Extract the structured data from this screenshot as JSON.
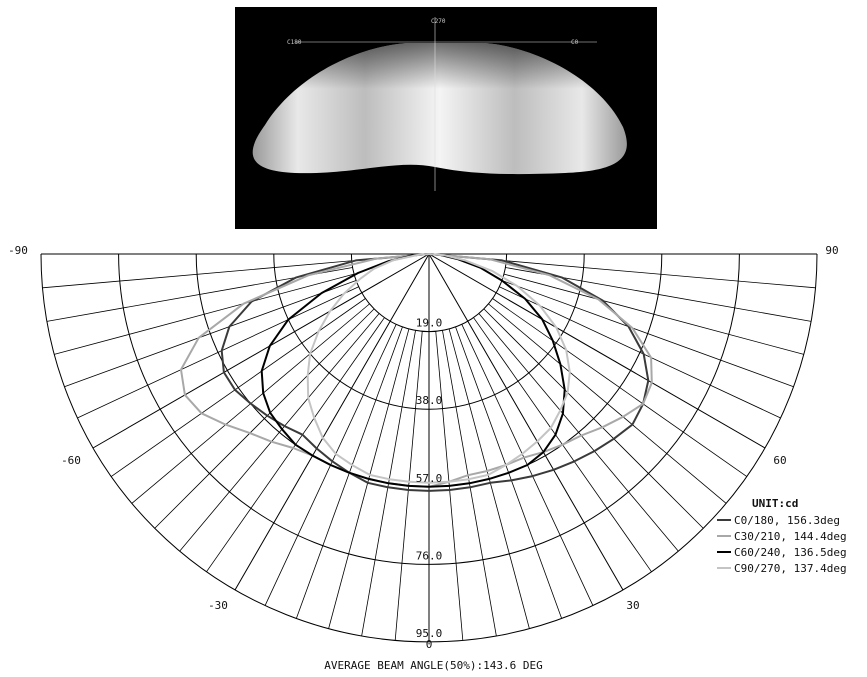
{
  "render_labels": {
    "top": "C270",
    "left": "C180",
    "right": "C0"
  },
  "chart_data": {
    "type": "polar",
    "unit_label": "UNIT:cd",
    "radial_ticks": [
      "19.0",
      "38.0",
      "57.0",
      "76.0",
      "95.0"
    ],
    "radial_max": 95,
    "center_label": "0",
    "angle_labels_left": [
      "-90",
      "-60",
      "-30"
    ],
    "angle_labels_right": [
      "90",
      "60",
      "30"
    ],
    "grid_step_deg": 5,
    "series": [
      {
        "name": "C0/180, 156.3deg",
        "color": "#3a3a3a",
        "points": [
          [
            -90,
            0
          ],
          [
            -85,
            18
          ],
          [
            -80,
            33
          ],
          [
            -75,
            45
          ],
          [
            -70,
            52
          ],
          [
            -65,
            56
          ],
          [
            -60,
            58
          ],
          [
            -55,
            58
          ],
          [
            -50,
            57
          ],
          [
            -45,
            56
          ],
          [
            -40,
            55
          ],
          [
            -35,
            54
          ],
          [
            -30,
            55
          ],
          [
            -25,
            56
          ],
          [
            -20,
            57
          ],
          [
            -15,
            58
          ],
          [
            -10,
            58
          ],
          [
            -5,
            58
          ],
          [
            0,
            58
          ],
          [
            5,
            58
          ],
          [
            10,
            58
          ],
          [
            15,
            58
          ],
          [
            20,
            59
          ],
          [
            25,
            60
          ],
          [
            30,
            61
          ],
          [
            35,
            62
          ],
          [
            40,
            63
          ],
          [
            45,
            64
          ],
          [
            50,
            65
          ],
          [
            55,
            64
          ],
          [
            60,
            62
          ],
          [
            65,
            58
          ],
          [
            70,
            52
          ],
          [
            75,
            44
          ],
          [
            80,
            33
          ],
          [
            85,
            18
          ],
          [
            90,
            0
          ]
        ]
      },
      {
        "name": "C30/210, 144.4deg",
        "color": "#a8a8a8",
        "points": [
          [
            -90,
            0
          ],
          [
            -85,
            13
          ],
          [
            -80,
            30
          ],
          [
            -75,
            47
          ],
          [
            -70,
            60
          ],
          [
            -65,
            67
          ],
          [
            -60,
            69
          ],
          [
            -55,
            68
          ],
          [
            -50,
            65
          ],
          [
            -45,
            62
          ],
          [
            -40,
            60
          ],
          [
            -35,
            58
          ],
          [
            -30,
            57
          ],
          [
            -25,
            57
          ],
          [
            -20,
            57
          ],
          [
            -15,
            57
          ],
          [
            -10,
            57
          ],
          [
            -5,
            57
          ],
          [
            0,
            57
          ],
          [
            5,
            56
          ],
          [
            10,
            55
          ],
          [
            15,
            55
          ],
          [
            20,
            55
          ],
          [
            25,
            55
          ],
          [
            30,
            56
          ],
          [
            35,
            57
          ],
          [
            40,
            58
          ],
          [
            45,
            60
          ],
          [
            50,
            62
          ],
          [
            55,
            64
          ],
          [
            60,
            63
          ],
          [
            65,
            60
          ],
          [
            70,
            53
          ],
          [
            75,
            43
          ],
          [
            80,
            30
          ],
          [
            85,
            15
          ],
          [
            90,
            0
          ]
        ]
      },
      {
        "name": "C60/240, 136.5deg",
        "color": "#000000",
        "points": [
          [
            -90,
            0
          ],
          [
            -85,
            4
          ],
          [
            -80,
            10
          ],
          [
            -75,
            18
          ],
          [
            -70,
            28
          ],
          [
            -65,
            38
          ],
          [
            -60,
            45
          ],
          [
            -55,
            50
          ],
          [
            -50,
            53
          ],
          [
            -45,
            55
          ],
          [
            -40,
            56
          ],
          [
            -35,
            57
          ],
          [
            -30,
            57
          ],
          [
            -25,
            57
          ],
          [
            -20,
            57
          ],
          [
            -15,
            57
          ],
          [
            -10,
            57
          ],
          [
            -5,
            57
          ],
          [
            0,
            57
          ],
          [
            5,
            57
          ],
          [
            10,
            57
          ],
          [
            15,
            57
          ],
          [
            20,
            57
          ],
          [
            25,
            57
          ],
          [
            30,
            56
          ],
          [
            35,
            54
          ],
          [
            40,
            51
          ],
          [
            45,
            47
          ],
          [
            50,
            42
          ],
          [
            55,
            37
          ],
          [
            60,
            32
          ],
          [
            65,
            26
          ],
          [
            70,
            19
          ],
          [
            75,
            13
          ],
          [
            80,
            7
          ],
          [
            85,
            3
          ],
          [
            90,
            0
          ]
        ]
      },
      {
        "name": "C90/270, 137.4deg",
        "color": "#c4c4c4",
        "points": [
          [
            -90,
            0
          ],
          [
            -85,
            3
          ],
          [
            -80,
            9
          ],
          [
            -75,
            14
          ],
          [
            -70,
            18
          ],
          [
            -65,
            23
          ],
          [
            -60,
            28
          ],
          [
            -55,
            33
          ],
          [
            -50,
            38
          ],
          [
            -45,
            42
          ],
          [
            -40,
            46
          ],
          [
            -35,
            49
          ],
          [
            -30,
            52
          ],
          [
            -25,
            54
          ],
          [
            -20,
            55
          ],
          [
            -15,
            56
          ],
          [
            -10,
            56
          ],
          [
            -5,
            56
          ],
          [
            0,
            56
          ],
          [
            5,
            56
          ],
          [
            10,
            56
          ],
          [
            15,
            56
          ],
          [
            20,
            55
          ],
          [
            25,
            54
          ],
          [
            30,
            53
          ],
          [
            35,
            52
          ],
          [
            40,
            50
          ],
          [
            45,
            48
          ],
          [
            50,
            45
          ],
          [
            55,
            41
          ],
          [
            60,
            36
          ],
          [
            65,
            30
          ],
          [
            70,
            23
          ],
          [
            75,
            16
          ],
          [
            80,
            9
          ],
          [
            85,
            4
          ],
          [
            90,
            0
          ]
        ]
      }
    ]
  },
  "footer": {
    "text": "AVERAGE BEAM ANGLE(50%):143.6 DEG"
  }
}
